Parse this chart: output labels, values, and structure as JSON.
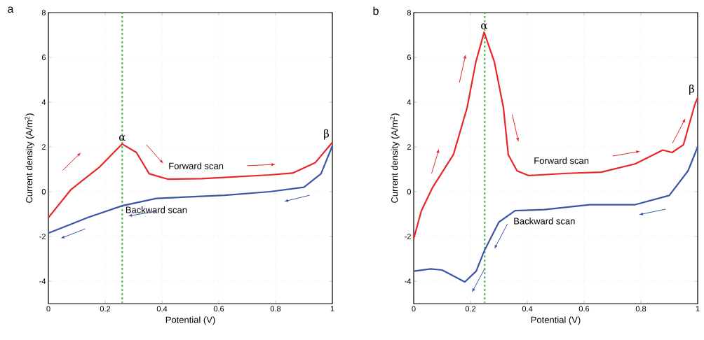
{
  "chart_data": [
    {
      "type": "line",
      "title": "a",
      "xlabel": "Potential (V)",
      "ylabel": "Current density (A/m$^{2}$)",
      "xlim": [
        0,
        1
      ],
      "ylim": [
        -5,
        8
      ],
      "xticks": [
        0,
        0.2,
        0.4,
        0.6,
        0.8,
        1
      ],
      "yticks": [
        -4,
        -2,
        0,
        2,
        4,
        6,
        8
      ],
      "grid": true,
      "marker": "none",
      "line_style": "solid",
      "series": [
        {
          "name": "Forward scan",
          "color": "#e8262a",
          "x": [
            0,
            0.08,
            0.18,
            0.26,
            0.31,
            0.355,
            0.42,
            0.54,
            0.78,
            0.86,
            0.94,
            1.0
          ],
          "values": [
            -1.16,
            0.1,
            1.1,
            2.13,
            1.75,
            0.8,
            0.56,
            0.58,
            0.75,
            0.83,
            1.3,
            2.2
          ]
        },
        {
          "name": "Backward scan",
          "color": "#3a56a5",
          "x": [
            0,
            0.14,
            0.26,
            0.38,
            0.62,
            0.78,
            0.9,
            0.96,
            1.0
          ],
          "values": [
            -1.85,
            -1.15,
            -0.63,
            -0.3,
            -0.16,
            0.0,
            0.2,
            0.8,
            2.05
          ]
        }
      ],
      "ref_lines": [
        {
          "axis": "x",
          "value": 0.26,
          "color": "#5cb85c",
          "line_style": "dashed"
        }
      ],
      "annotations": [
        {
          "text": "α",
          "x": 0.26,
          "y": 2.13
        },
        {
          "text": "β",
          "x": 1.0,
          "y": 2.2
        }
      ]
    },
    {
      "type": "line",
      "title": "b",
      "xlabel": "Potential (V)",
      "ylabel": "Current density (A/m$^{2}$)",
      "xlim": [
        0,
        1
      ],
      "ylim": [
        -5,
        8
      ],
      "xticks": [
        0,
        0.2,
        0.4,
        0.6,
        0.8,
        1
      ],
      "yticks": [
        -4,
        -2,
        0,
        2,
        4,
        6,
        8
      ],
      "grid": true,
      "marker": "none",
      "line_style": "solid",
      "series": [
        {
          "name": "Forward scan",
          "color": "#e8262a",
          "x": [
            0,
            0.027,
            0.067,
            0.14,
            0.188,
            0.219,
            0.248,
            0.284,
            0.316,
            0.333,
            0.364,
            0.405,
            0.54,
            0.66,
            0.78,
            0.877,
            0.91,
            0.95,
            0.99,
            1.0
          ],
          "values": [
            -2.1,
            -0.85,
            0.2,
            1.66,
            3.75,
            5.8,
            7.12,
            5.8,
            3.75,
            1.65,
            0.93,
            0.72,
            0.82,
            0.87,
            1.24,
            1.86,
            1.75,
            2.1,
            3.9,
            4.2
          ]
        },
        {
          "name": "Backward scan",
          "color": "#3a56a5",
          "x": [
            0,
            0.06,
            0.1,
            0.18,
            0.22,
            0.25,
            0.3,
            0.357,
            0.46,
            0.62,
            0.78,
            0.9,
            0.966,
            1.0
          ],
          "values": [
            -3.55,
            -3.45,
            -3.5,
            -4.03,
            -3.55,
            -2.6,
            -1.36,
            -0.85,
            -0.8,
            -0.58,
            -0.58,
            -0.17,
            0.93,
            2.0
          ]
        }
      ],
      "ref_lines": [
        {
          "axis": "x",
          "value": 0.25,
          "color": "#5cb85c",
          "line_style": "dashed"
        }
      ],
      "annotations": [
        {
          "text": "α",
          "x": 0.248,
          "y": 7.12
        },
        {
          "text": "β",
          "x": 1.0,
          "y": 4.2
        }
      ]
    }
  ]
}
